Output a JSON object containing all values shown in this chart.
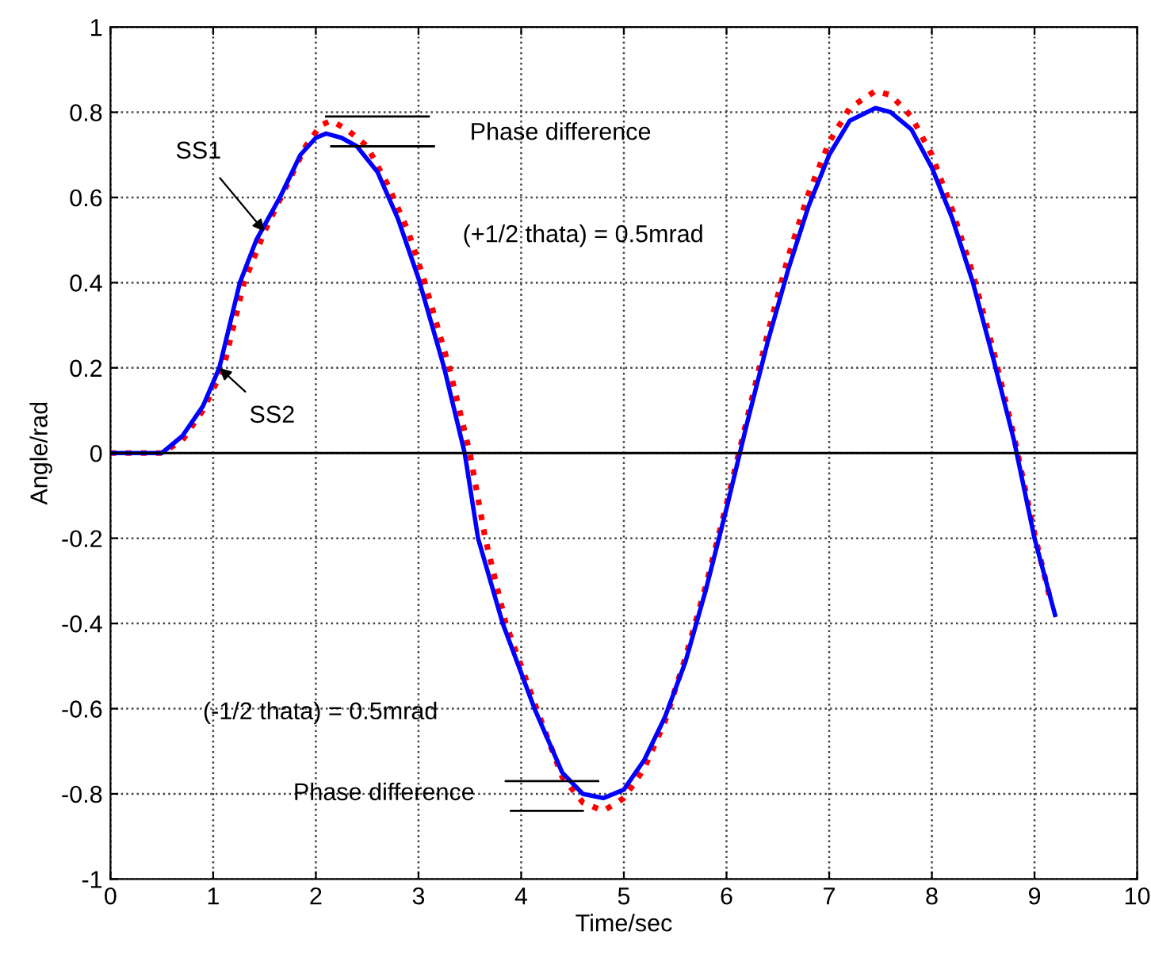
{
  "chart_data": {
    "type": "line",
    "xlabel": "Time/sec",
    "ylabel": "Angle/rad",
    "xlim": [
      0,
      10
    ],
    "ylim": [
      -1,
      1
    ],
    "xticks": [
      0,
      1,
      2,
      3,
      4,
      5,
      6,
      7,
      8,
      9,
      10
    ],
    "yticks": [
      -1,
      -0.8,
      -0.6,
      -0.4,
      -0.2,
      0,
      0.2,
      0.4,
      0.6,
      0.8,
      1
    ],
    "grid": true,
    "line_style": "solid",
    "ref_lines": [
      {
        "axis": "y",
        "value": 0,
        "color": "#000000",
        "line_style": "solid"
      }
    ],
    "series": [
      {
        "color": "#ff0000",
        "line_style": "dotted",
        "x": [
          0,
          0.5,
          0.7,
          0.9,
          1.1,
          1.3,
          1.5,
          1.7,
          1.9,
          2.05,
          2.15,
          2.3,
          2.5,
          2.7,
          2.9,
          3.05,
          3.3,
          3.5,
          3.65,
          3.85,
          4.15,
          4.4,
          4.6,
          4.8,
          5.0,
          5.2,
          5.4,
          5.6,
          5.8,
          6.0,
          6.2,
          6.4,
          6.6,
          6.8,
          7.0,
          7.2,
          7.45,
          7.6,
          7.8,
          8.0,
          8.2,
          8.4,
          8.6,
          8.8,
          9.0,
          9.15
        ],
        "values": [
          0,
          0,
          0.03,
          0.1,
          0.2,
          0.4,
          0.52,
          0.62,
          0.72,
          0.77,
          0.78,
          0.76,
          0.72,
          0.63,
          0.52,
          0.41,
          0.2,
          0.0,
          -0.2,
          -0.4,
          -0.6,
          -0.76,
          -0.82,
          -0.84,
          -0.81,
          -0.74,
          -0.63,
          -0.48,
          -0.31,
          -0.12,
          0.08,
          0.28,
          0.46,
          0.61,
          0.73,
          0.81,
          0.85,
          0.84,
          0.79,
          0.7,
          0.57,
          0.42,
          0.24,
          0.04,
          -0.19,
          -0.34
        ]
      },
      {
        "color": "#0000ff",
        "x": [
          0,
          0.5,
          0.7,
          0.9,
          1.06,
          1.26,
          1.42,
          1.65,
          1.85,
          2.0,
          2.1,
          2.25,
          2.4,
          2.6,
          2.8,
          3.0,
          3.25,
          3.45,
          3.58,
          3.82,
          4.13,
          4.4,
          4.6,
          4.8,
          5.0,
          5.2,
          5.4,
          5.6,
          5.8,
          6.0,
          6.2,
          6.4,
          6.6,
          6.8,
          7.0,
          7.2,
          7.45,
          7.6,
          7.8,
          8.0,
          8.2,
          8.4,
          8.6,
          8.8,
          9.0,
          9.2
        ],
        "values": [
          0,
          0,
          0.04,
          0.11,
          0.2,
          0.4,
          0.5,
          0.6,
          0.7,
          0.74,
          0.75,
          0.74,
          0.72,
          0.66,
          0.55,
          0.41,
          0.2,
          0.0,
          -0.2,
          -0.4,
          -0.6,
          -0.75,
          -0.8,
          -0.81,
          -0.79,
          -0.72,
          -0.62,
          -0.49,
          -0.32,
          -0.13,
          0.07,
          0.26,
          0.43,
          0.58,
          0.7,
          0.78,
          0.81,
          0.8,
          0.76,
          0.67,
          0.55,
          0.4,
          0.22,
          0.03,
          -0.2,
          -0.38
        ]
      },
      {
        "color": "#000000",
        "x": [
          2.1,
          3.1
        ],
        "values": [
          0.79,
          0.79
        ]
      },
      {
        "color": "#000000",
        "x": [
          2.15,
          3.15
        ],
        "values": [
          0.72,
          0.72
        ]
      },
      {
        "color": "#000000",
        "x": [
          3.85,
          4.75
        ],
        "values": [
          -0.77,
          -0.77
        ]
      },
      {
        "color": "#000000",
        "x": [
          3.9,
          4.6
        ],
        "values": [
          -0.84,
          -0.84
        ]
      }
    ],
    "annotations": [
      "Phase difference",
      "(+1/2 thata) = 0.5mrad",
      "(-1/2 thata) = 0.5mrad",
      "Phase difference",
      {
        "text": "SS1",
        "x": 1.5,
        "y": 0.52
      },
      {
        "text": "SS2",
        "x": 1.06,
        "y": 0.2
      }
    ]
  }
}
